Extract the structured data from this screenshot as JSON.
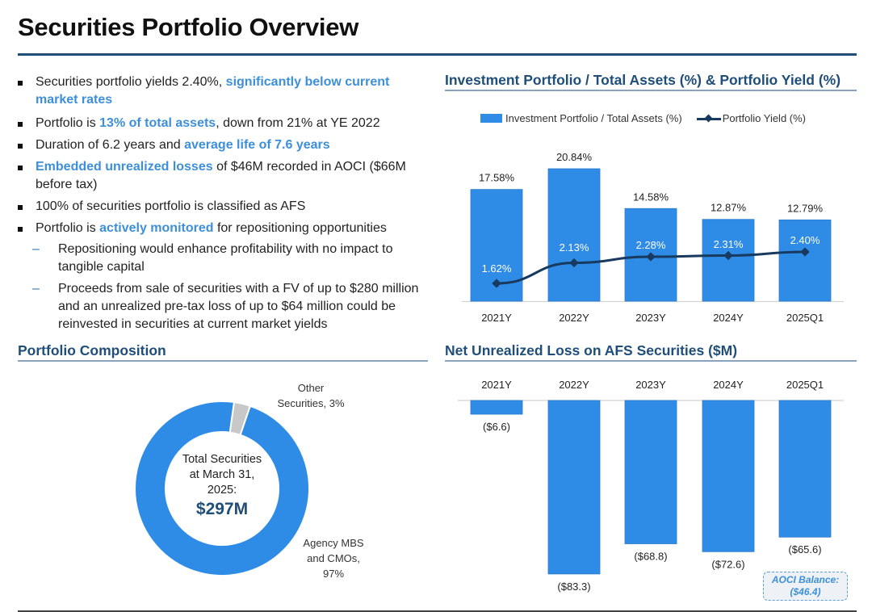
{
  "page": {
    "title": "Securities Portfolio Overview"
  },
  "bullets": [
    {
      "parts": [
        {
          "t": "Securities portfolio yields 2.40%, ",
          "h": false
        },
        {
          "t": "significantly below current market rates",
          "h": true
        }
      ]
    },
    {
      "parts": [
        {
          "t": "Portfolio is ",
          "h": false
        },
        {
          "t": "13% of total assets",
          "h": true
        },
        {
          "t": ", down from 21% at YE 2022",
          "h": false
        }
      ]
    },
    {
      "parts": [
        {
          "t": "Duration of 6.2 years and ",
          "h": false
        },
        {
          "t": "average life of 7.6 years",
          "h": true
        }
      ]
    },
    {
      "parts": [
        {
          "t": "Embedded unrealized losses",
          "h": true
        },
        {
          "t": " of $46M recorded in AOCI ($66M before tax)",
          "h": false
        }
      ]
    },
    {
      "parts": [
        {
          "t": "100% of securities portfolio is classified as AFS",
          "h": false
        }
      ]
    },
    {
      "parts": [
        {
          "t": "Portfolio is ",
          "h": false
        },
        {
          "t": "actively monitored",
          "h": true
        },
        {
          "t": " for repositioning opportunities",
          "h": false
        }
      ]
    }
  ],
  "sub_bullets": [
    "Repositioning would enhance profitability with no impact to tangible capital",
    "Proceeds from sale of securities with a FV of up to $280 million and an unrealized pre-tax loss of up to $64 million could be reinvested in securities at current market yields"
  ],
  "sub_bullet_marker": "–",
  "sections": {
    "composition_title": "Portfolio Composition",
    "yield_chart_title": "Investment Portfolio / Total Assets (%) & Portfolio Yield (%)",
    "loss_chart_title": "Net Unrealized Loss on AFS Securities ($M)"
  },
  "donut_center": {
    "line1": "Total Securities",
    "line2": "at March 31,",
    "line3": "2025:",
    "value": "$297M"
  },
  "aoci_note": {
    "line1": "AOCI Balance:",
    "line2": "($46.4)"
  },
  "colors": {
    "bar_blue": "#2e8be6",
    "line_navy": "#173a5e",
    "heading_navy": "#1f4e79",
    "highlight_blue": "#3d8fd9",
    "other_gray": "#c8c8c8"
  },
  "chart_data": [
    {
      "type": "bar",
      "title": "Investment Portfolio / Total Assets (%) & Portfolio Yield (%)",
      "categories": [
        "2021Y",
        "2022Y",
        "2023Y",
        "2024Y",
        "2025Q1"
      ],
      "series": [
        {
          "name": "Investment Portfolio / Total Assets (%)",
          "kind": "bar",
          "values": [
            17.58,
            20.84,
            14.58,
            12.87,
            12.79
          ],
          "labels": [
            "17.58%",
            "20.84%",
            "14.58%",
            "12.87%",
            "12.79%"
          ]
        },
        {
          "name": "Portfolio Yield (%)",
          "kind": "line",
          "values": [
            1.62,
            2.13,
            2.28,
            2.31,
            2.4
          ],
          "labels": [
            "1.62%",
            "2.13%",
            "2.28%",
            "2.31%",
            "2.40%"
          ]
        }
      ],
      "legend": "top-center",
      "grid": false,
      "xlabel": "",
      "ylabel": ""
    },
    {
      "type": "pie",
      "title": "Portfolio Composition",
      "donut": true,
      "slices": [
        {
          "name": "Agency MBS and CMOs",
          "value": 97,
          "label_lines": [
            "Agency MBS",
            "and CMOs,",
            "97%"
          ]
        },
        {
          "name": "Other Securities",
          "value": 3,
          "label_lines": [
            "Other",
            "Securities, 3%"
          ]
        }
      ],
      "center_label": "Total Securities at March 31, 2025: $297M"
    },
    {
      "type": "bar",
      "title": "Net Unrealized Loss on AFS Securities ($M)",
      "categories": [
        "2021Y",
        "2022Y",
        "2023Y",
        "2024Y",
        "2025Q1"
      ],
      "values": [
        -6.6,
        -83.3,
        -68.8,
        -72.6,
        -65.6
      ],
      "labels": [
        "($6.6)",
        "($83.3)",
        "($68.8)",
        "($72.6)",
        "($65.6)"
      ],
      "axis_position": "top",
      "grid": false,
      "annotation": "AOCI Balance: ($46.4)"
    }
  ]
}
